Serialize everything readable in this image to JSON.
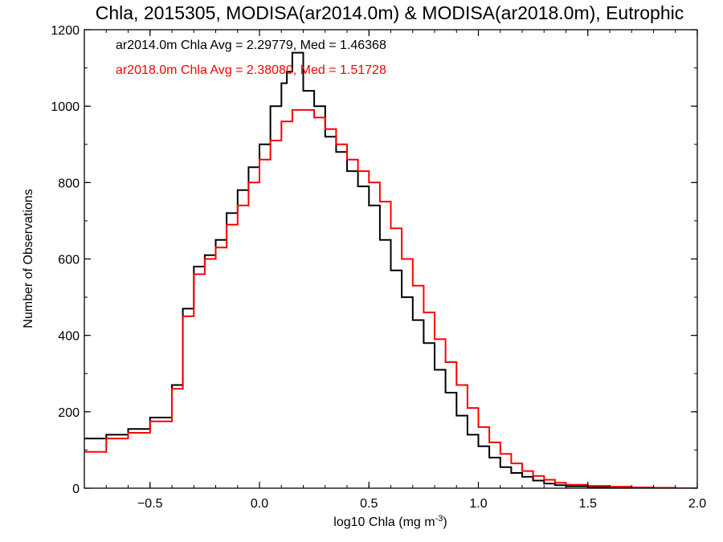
{
  "chart_data": {
    "type": "line",
    "title": "Chla, 2015305, MODISA(ar2014.0m) & MODISA(ar2018.0m), Eutrophic",
    "xlabel_prefix": "log10 Chla (mg m",
    "xlabel_sup": "-3",
    "xlabel_suffix": ")",
    "ylabel": "Number of Observations",
    "xlim": [
      -0.8,
      2.0
    ],
    "ylim": [
      0,
      1200
    ],
    "x_ticks": [
      -0.5,
      0.0,
      0.5,
      1.0,
      1.5,
      2.0
    ],
    "x_tick_labels": [
      "−0.5",
      "0.0",
      "0.5",
      "1.0",
      "1.5",
      "2.0"
    ],
    "y_ticks": [
      0,
      200,
      400,
      600,
      800,
      1000,
      1200
    ],
    "y_tick_labels": [
      "0",
      "200",
      "400",
      "600",
      "800",
      "1000",
      "1200"
    ],
    "grid": false,
    "legend_placement": "top-left",
    "series": [
      {
        "name": "ar2014.0m Chla Avg = 2.29779, Med = 1.46368",
        "color": "#000000",
        "x": [
          -0.8,
          -0.7,
          -0.6,
          -0.5,
          -0.4,
          -0.35,
          -0.3,
          -0.25,
          -0.2,
          -0.15,
          -0.1,
          -0.05,
          0.0,
          0.05,
          0.1,
          0.125,
          0.15,
          0.2,
          0.25,
          0.3,
          0.35,
          0.4,
          0.45,
          0.5,
          0.55,
          0.6,
          0.65,
          0.7,
          0.75,
          0.8,
          0.85,
          0.9,
          0.95,
          1.0,
          1.05,
          1.1,
          1.15,
          1.2,
          1.25,
          1.3,
          1.35,
          1.4,
          1.5,
          1.6,
          1.7,
          1.8,
          1.9,
          2.0
        ],
        "y": [
          130,
          140,
          155,
          185,
          270,
          470,
          580,
          610,
          650,
          720,
          780,
          840,
          900,
          1000,
          1060,
          1090,
          1140,
          1040,
          1000,
          920,
          880,
          830,
          790,
          740,
          650,
          570,
          500,
          440,
          380,
          310,
          250,
          190,
          140,
          110,
          80,
          55,
          40,
          30,
          20,
          12,
          8,
          5,
          3,
          2,
          1,
          0,
          0,
          0
        ]
      },
      {
        "name": "ar2018.0m Chla Avg = 2.38080, Med = 1.51728",
        "color": "#ff0000",
        "x": [
          -0.8,
          -0.7,
          -0.6,
          -0.5,
          -0.4,
          -0.35,
          -0.3,
          -0.25,
          -0.2,
          -0.15,
          -0.1,
          -0.05,
          0.0,
          0.05,
          0.1,
          0.15,
          0.2,
          0.25,
          0.3,
          0.35,
          0.4,
          0.45,
          0.5,
          0.55,
          0.6,
          0.65,
          0.7,
          0.75,
          0.8,
          0.85,
          0.9,
          0.95,
          1.0,
          1.05,
          1.1,
          1.15,
          1.2,
          1.25,
          1.3,
          1.35,
          1.4,
          1.5,
          1.6,
          1.7,
          1.8,
          1.9,
          2.0
        ],
        "y": [
          95,
          130,
          145,
          175,
          260,
          450,
          560,
          600,
          630,
          690,
          740,
          800,
          860,
          910,
          960,
          990,
          990,
          970,
          940,
          900,
          860,
          830,
          800,
          750,
          680,
          600,
          530,
          460,
          390,
          330,
          270,
          210,
          160,
          120,
          90,
          65,
          45,
          32,
          22,
          14,
          9,
          6,
          4,
          2,
          1,
          0,
          0
        ]
      }
    ]
  }
}
